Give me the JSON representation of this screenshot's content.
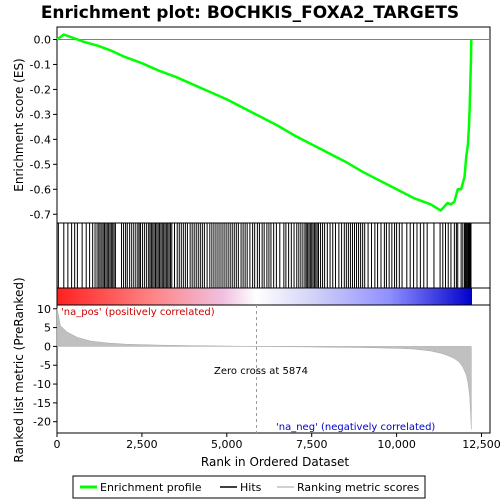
{
  "chart_data": {
    "type": "line",
    "title": "Enrichment plot: BOCHKIS_FOXA2_TARGETS",
    "xlabel": "Rank in Ordered Dataset",
    "ylabel_top": "Enrichment score (ES)",
    "ylabel_bottom": "Ranked list metric (PreRanked)",
    "xlim": [
      0,
      12750
    ],
    "x_ticks": [
      0,
      2500,
      5000,
      7500,
      10000,
      12500
    ],
    "x_tick_labels": [
      "0",
      "2,500",
      "5,000",
      "7,500",
      "10,000",
      "12,500"
    ],
    "es_ylim": [
      -0.735,
      0.05
    ],
    "es_ticks": [
      0.0,
      -0.1,
      -0.2,
      -0.3,
      -0.4,
      -0.5,
      -0.6,
      -0.7
    ],
    "es_tick_labels": [
      "0.0",
      "-0.1",
      "-0.2",
      "-0.3",
      "-0.4",
      "-0.5",
      "-0.6",
      "-0.7"
    ],
    "metric_ylim": [
      -23,
      11
    ],
    "metric_ticks": [
      10,
      5,
      0,
      -5,
      -10,
      -15,
      -20
    ],
    "metric_tick_labels": [
      "10",
      "5",
      "0",
      "-5",
      "-10",
      "-15",
      "-20"
    ],
    "series": [
      {
        "name": "Enrichment profile",
        "color": "#00ff00",
        "x": [
          0,
          100,
          200,
          300,
          500,
          800,
          1200,
          1600,
          2000,
          2500,
          3000,
          3500,
          4000,
          4500,
          5000,
          5500,
          6000,
          6500,
          7000,
          7500,
          8000,
          8500,
          9000,
          9500,
          10000,
          10500,
          11000,
          11300,
          11400,
          11500,
          11600,
          11700,
          11800,
          11900,
          12000,
          12050,
          12100,
          12130,
          12150,
          12170,
          12190,
          12200
        ],
        "y": [
          0.0,
          0.01,
          0.02,
          0.015,
          0.005,
          -0.01,
          -0.025,
          -0.045,
          -0.07,
          -0.095,
          -0.125,
          -0.15,
          -0.18,
          -0.21,
          -0.24,
          -0.275,
          -0.31,
          -0.345,
          -0.385,
          -0.42,
          -0.455,
          -0.49,
          -0.53,
          -0.565,
          -0.6,
          -0.635,
          -0.66,
          -0.685,
          -0.67,
          -0.655,
          -0.66,
          -0.65,
          -0.6,
          -0.6,
          -0.55,
          -0.47,
          -0.42,
          -0.35,
          -0.28,
          -0.18,
          -0.08,
          0.0
        ]
      },
      {
        "name": "Ranking metric scores",
        "color": "#c0c0c0",
        "x": [
          0,
          100,
          300,
          600,
          1000,
          1500,
          2000,
          3000,
          4000,
          5000,
          5874,
          7000,
          8000,
          9000,
          10000,
          10500,
          11000,
          11300,
          11500,
          11700,
          11850,
          11950,
          12050,
          12100,
          12150,
          12180,
          12200
        ],
        "y": [
          10.2,
          5.5,
          3.8,
          2.4,
          1.4,
          0.9,
          0.6,
          0.35,
          0.2,
          0.1,
          0.0,
          -0.1,
          -0.2,
          -0.3,
          -0.5,
          -0.7,
          -1.2,
          -1.8,
          -2.4,
          -3.2,
          -4.2,
          -5.5,
          -7.5,
          -9.5,
          -13,
          -18,
          -22
        ]
      }
    ],
    "hits_legend": "Hits",
    "hits": [
      40,
      200,
      320,
      430,
      520,
      600,
      740,
      860,
      960,
      1050,
      1120,
      1180,
      1230,
      1270,
      1320,
      1360,
      1400,
      1440,
      1480,
      1520,
      1560,
      1600,
      1640,
      1680,
      1720,
      1900,
      1960,
      2020,
      2070,
      2140,
      2200,
      2260,
      2320,
      2380,
      2420,
      2460,
      2520,
      2580,
      2640,
      2700,
      2740,
      2780,
      2820,
      2860,
      2900,
      2940,
      2980,
      3020,
      3060,
      3100,
      3140,
      3180,
      3220,
      3260,
      3300,
      3340,
      3380,
      3460,
      3540,
      3600,
      3660,
      3720,
      3780,
      3840,
      3920,
      3980,
      4040,
      4100,
      4160,
      4220,
      4280,
      4340,
      4420,
      4500,
      4560,
      4620,
      4680,
      4740,
      4800,
      4860,
      4920,
      4980,
      5040,
      5100,
      5160,
      5220,
      5280,
      5340,
      5420,
      5480,
      5540,
      5600,
      5680,
      5760,
      5820,
      5900,
      5960,
      6040,
      6100,
      6180,
      6240,
      6300,
      6380,
      6460,
      6560,
      6680,
      6740,
      6820,
      6900,
      6980,
      7060,
      7120,
      7180,
      7240,
      7300,
      7340,
      7380,
      7420,
      7460,
      7500,
      7540,
      7580,
      7620,
      7660,
      7700,
      7760,
      7820,
      7880,
      7960,
      8040,
      8120,
      8200,
      8300,
      8380,
      8460,
      8520,
      8580,
      8640,
      8700,
      8760,
      8820,
      8880,
      8940,
      9000,
      9060,
      9160,
      9260,
      9360,
      9440,
      9540,
      9640,
      9700,
      9780,
      9860,
      9940,
      10000,
      10080,
      10160,
      10300,
      10400,
      10500,
      10600,
      10700,
      10800,
      10900,
      11100,
      11280,
      11360,
      11440,
      11520,
      11600,
      11700,
      11760,
      11800,
      11900,
      11950,
      12000,
      12030,
      12060,
      12090,
      12110,
      12130,
      12150,
      12170,
      12190
    ],
    "zero_cross": 5874,
    "zero_cross_label": "Zero cross at 5874",
    "pos_label": "'na_pos' (positively correlated)",
    "neg_label": "'na_neg' (negatively correlated)",
    "colors": {
      "profile": "#00ff00",
      "hits": "#000000",
      "metric_fill": "#c0c0c0",
      "pos_text": "#cc0000",
      "neg_text": "#0000cc",
      "heat_pos": "#ff0000",
      "heat_neg": "#0000ff"
    },
    "legend": {
      "position": "bottom",
      "items": [
        "Enrichment profile",
        "Hits",
        "Ranking metric scores"
      ]
    }
  }
}
